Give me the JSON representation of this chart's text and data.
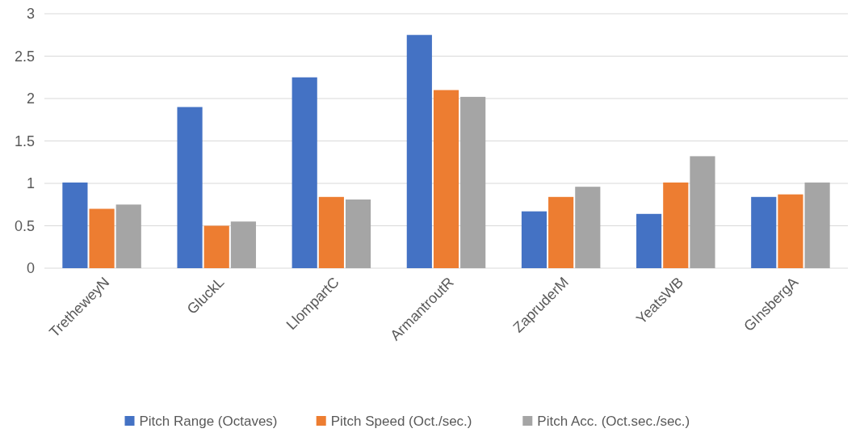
{
  "chart_data": {
    "type": "bar",
    "categories": [
      "TretheweyN",
      "GluckL",
      "LlompartC",
      "ArmantroutR",
      "ZapruderM",
      "YeatsWB",
      "GInsbergA"
    ],
    "series": [
      {
        "name": "Pitch Range (Octaves)",
        "color": "#4472c4",
        "values": [
          1.01,
          1.9,
          2.25,
          2.75,
          0.67,
          0.64,
          0.84
        ]
      },
      {
        "name": "Pitch Speed (Oct./sec.)",
        "color": "#ed7d31",
        "values": [
          0.7,
          0.5,
          0.84,
          2.1,
          0.84,
          1.01,
          0.87
        ]
      },
      {
        "name": "Pitch Acc. (Oct.sec./sec.)",
        "color": "#a5a5a5",
        "values": [
          0.75,
          0.55,
          0.81,
          2.02,
          0.96,
          1.32,
          1.01
        ]
      }
    ],
    "ylim": [
      0,
      3
    ],
    "yticks": [
      0,
      0.5,
      1,
      1.5,
      2,
      2.5,
      3
    ],
    "grid": "y",
    "legend": "bottom"
  }
}
